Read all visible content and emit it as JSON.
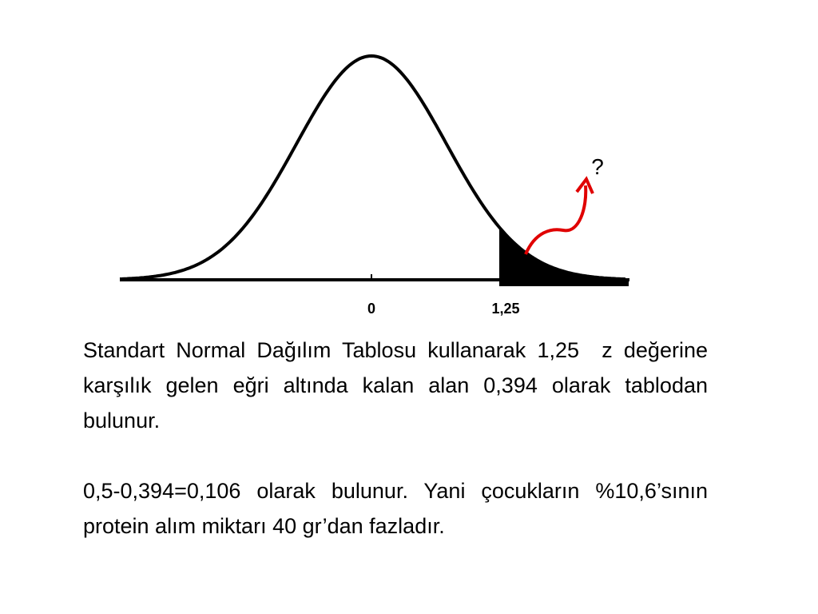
{
  "diagram": {
    "labels": {
      "mean": "0",
      "z": "1,25",
      "question": "?"
    }
  },
  "text": {
    "paragraphs": [
      "Standart Normal Dağılım Tablosu kullanarak 1,25  z değerine karşılık gelen eğri altında kalan alan 0,394 olarak tablodan bulunur.",
      "0,5-0,394=0,106 olarak bulunur. Yani çocukların %10,6’sının protein alım miktarı 40 gr’dan fazladır."
    ]
  }
}
